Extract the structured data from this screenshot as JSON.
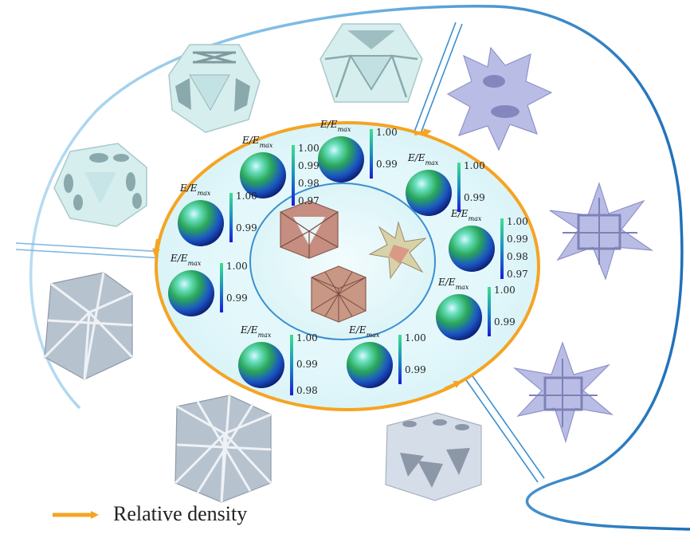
{
  "colors": {
    "orange": "#f5a423",
    "blue_dark": "#1d6fb8",
    "blue_light": "#9fd0ee",
    "cell_ice": "#d6eeee",
    "cell_lavender": "#b9bde6",
    "cell_gray": "#b7c2cf",
    "core_bg": "#e6f7fa",
    "sphere_green": "#39c463",
    "sphere_blue": "#1a3fb0",
    "bar_top": "#39d18d",
    "bar_bottom": "#1f1fd6"
  },
  "legend": {
    "arrow_label": "Relative density"
  },
  "modulus_panels": [
    {
      "id": "p1",
      "symbol": "E/E",
      "sub": "max",
      "ticks": [
        "1.00",
        "0.99",
        "0.98",
        "0.97"
      ]
    },
    {
      "id": "p2",
      "symbol": "E/E",
      "sub": "max",
      "ticks": [
        "1.00",
        "0.99"
      ]
    },
    {
      "id": "p3",
      "symbol": "E/E",
      "sub": "max",
      "ticks": [
        "1.00",
        "0.99"
      ]
    },
    {
      "id": "p4",
      "symbol": "E/E",
      "sub": "max",
      "ticks": [
        "1.00",
        "0.99",
        "0.98",
        "0.97"
      ]
    },
    {
      "id": "p5",
      "symbol": "E/E",
      "sub": "max",
      "ticks": [
        "1.00",
        "0.99"
      ]
    },
    {
      "id": "p6",
      "symbol": "E/E",
      "sub": "max",
      "ticks": [
        "1.00",
        "0.99"
      ]
    },
    {
      "id": "p7",
      "symbol": "E/E",
      "sub": "max",
      "ticks": [
        "1.00",
        "0.99",
        "0.98"
      ]
    },
    {
      "id": "p8",
      "symbol": "E/E",
      "sub": "max",
      "ticks": [
        "1.00",
        "0.99"
      ]
    },
    {
      "id": "p9",
      "symbol": "E/E",
      "sub": "max",
      "ticks": [
        "1.00",
        "0.99"
      ]
    }
  ]
}
